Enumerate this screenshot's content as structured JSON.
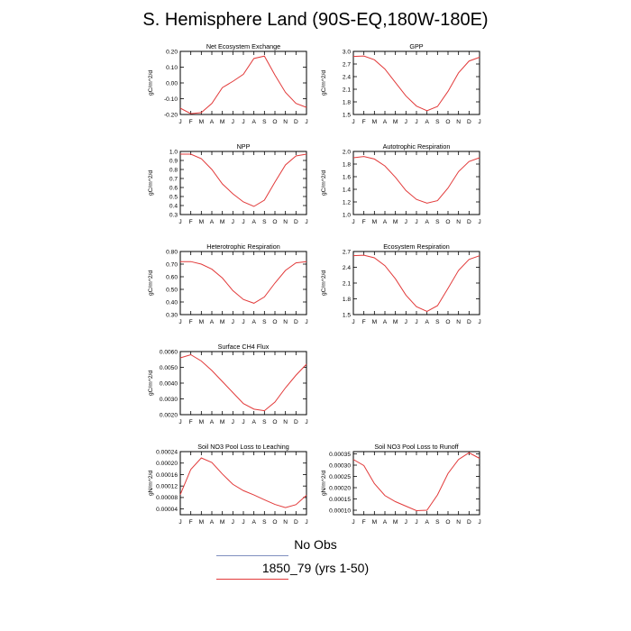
{
  "title": "S. Hemisphere Land (90S-EQ,180W-180E)",
  "legend": {
    "obs_label": "No Obs",
    "case_label": "1850_79 (yrs 1-50)",
    "obs_color": "#7f8fbf",
    "case_color": "#e23a3a"
  },
  "chart_data": [
    {
      "type": "line",
      "title": "Net Ecosystem Exchange",
      "ylabel": "gC/m^2/d",
      "categories": [
        "J",
        "F",
        "M",
        "A",
        "M",
        "J",
        "J",
        "A",
        "S",
        "O",
        "N",
        "D",
        "J"
      ],
      "ylim": [
        -0.2,
        0.2
      ],
      "yticks": [
        -0.2,
        -0.1,
        0.0,
        0.1,
        0.2
      ],
      "ytick_labels": [
        "-0.20",
        "-0.10",
        "0.00",
        "0.10",
        "0.20"
      ],
      "series": [
        {
          "color": "#e23a3a",
          "values": [
            -0.16,
            -0.195,
            -0.188,
            -0.13,
            -0.03,
            0.01,
            0.055,
            0.155,
            0.17,
            0.05,
            -0.06,
            -0.13,
            -0.155
          ]
        }
      ]
    },
    {
      "type": "line",
      "title": "GPP",
      "ylabel": "gC/m^2/d",
      "categories": [
        "J",
        "F",
        "M",
        "A",
        "M",
        "J",
        "J",
        "A",
        "S",
        "O",
        "N",
        "D",
        "J"
      ],
      "ylim": [
        1.5,
        3.0
      ],
      "yticks": [
        1.5,
        1.8,
        2.1,
        2.4,
        2.7,
        3.0
      ],
      "ytick_labels": [
        "1.5",
        "1.8",
        "2.1",
        "2.4",
        "2.7",
        "3.0"
      ],
      "series": [
        {
          "color": "#e23a3a",
          "values": [
            2.88,
            2.89,
            2.8,
            2.58,
            2.26,
            1.94,
            1.7,
            1.59,
            1.69,
            2.05,
            2.49,
            2.77,
            2.86
          ]
        }
      ]
    },
    {
      "type": "line",
      "title": "NPP",
      "ylabel": "gC/m^2/d",
      "categories": [
        "J",
        "F",
        "M",
        "A",
        "M",
        "J",
        "J",
        "A",
        "S",
        "O",
        "N",
        "D",
        "J"
      ],
      "ylim": [
        0.3,
        1.0
      ],
      "yticks": [
        0.3,
        0.4,
        0.5,
        0.6,
        0.7,
        0.8,
        0.9,
        1.0
      ],
      "ytick_labels": [
        "0.3",
        "0.4",
        "0.5",
        "0.6",
        "0.7",
        "0.8",
        "0.9",
        "1.0"
      ],
      "series": [
        {
          "color": "#e23a3a",
          "values": [
            0.97,
            0.97,
            0.92,
            0.8,
            0.64,
            0.53,
            0.44,
            0.39,
            0.46,
            0.66,
            0.85,
            0.95,
            0.97
          ]
        }
      ]
    },
    {
      "type": "line",
      "title": "Autotrophic Respiration",
      "ylabel": "gC/m^2/d",
      "categories": [
        "J",
        "F",
        "M",
        "A",
        "M",
        "J",
        "J",
        "A",
        "S",
        "O",
        "N",
        "D",
        "J"
      ],
      "ylim": [
        1.0,
        2.0
      ],
      "yticks": [
        1.0,
        1.2,
        1.4,
        1.6,
        1.8,
        2.0
      ],
      "ytick_labels": [
        "1.0",
        "1.2",
        "1.4",
        "1.6",
        "1.8",
        "2.0"
      ],
      "series": [
        {
          "color": "#e23a3a",
          "values": [
            1.9,
            1.92,
            1.88,
            1.77,
            1.59,
            1.38,
            1.24,
            1.18,
            1.22,
            1.42,
            1.68,
            1.84,
            1.9
          ]
        }
      ]
    },
    {
      "type": "line",
      "title": "Heterotrophic Respiration",
      "ylabel": "gC/m^2/d",
      "categories": [
        "J",
        "F",
        "M",
        "A",
        "M",
        "J",
        "J",
        "A",
        "S",
        "O",
        "N",
        "D",
        "J"
      ],
      "ylim": [
        0.3,
        0.8
      ],
      "yticks": [
        0.3,
        0.4,
        0.5,
        0.6,
        0.7,
        0.8
      ],
      "ytick_labels": [
        "0.30",
        "0.40",
        "0.50",
        "0.60",
        "0.70",
        "0.80"
      ],
      "series": [
        {
          "color": "#e23a3a",
          "values": [
            0.72,
            0.72,
            0.7,
            0.66,
            0.59,
            0.49,
            0.42,
            0.39,
            0.44,
            0.55,
            0.65,
            0.71,
            0.72
          ]
        }
      ]
    },
    {
      "type": "line",
      "title": "Ecosystem Respiration",
      "ylabel": "gC/m^2/d",
      "categories": [
        "J",
        "F",
        "M",
        "A",
        "M",
        "J",
        "J",
        "A",
        "S",
        "O",
        "N",
        "D",
        "J"
      ],
      "ylim": [
        1.5,
        2.7
      ],
      "yticks": [
        1.5,
        1.8,
        2.1,
        2.4,
        2.7
      ],
      "ytick_labels": [
        "1.5",
        "1.8",
        "2.1",
        "2.4",
        "2.7"
      ],
      "series": [
        {
          "color": "#e23a3a",
          "values": [
            2.62,
            2.63,
            2.58,
            2.43,
            2.18,
            1.87,
            1.65,
            1.56,
            1.67,
            2.0,
            2.34,
            2.55,
            2.62
          ]
        }
      ]
    },
    {
      "type": "line",
      "title": "Surface CH4 Flux",
      "ylabel": "gC/m^2/d",
      "categories": [
        "J",
        "F",
        "M",
        "A",
        "M",
        "J",
        "J",
        "A",
        "S",
        "O",
        "N",
        "D",
        "J"
      ],
      "ylim": [
        0.002,
        0.006
      ],
      "yticks": [
        0.002,
        0.003,
        0.004,
        0.005,
        0.006
      ],
      "ytick_labels": [
        "0.0020",
        "0.0030",
        "0.0040",
        "0.0050",
        "0.0060"
      ],
      "series": [
        {
          "color": "#e23a3a",
          "values": [
            0.0056,
            0.0058,
            0.0054,
            0.0048,
            0.0041,
            0.0034,
            0.0027,
            0.00235,
            0.00225,
            0.0028,
            0.0037,
            0.0045,
            0.0052
          ]
        }
      ]
    },
    {
      "type": "line",
      "title": "Soil NO3 Pool Loss to Leaching",
      "ylabel": "gN/m^2/d",
      "categories": [
        "J",
        "F",
        "M",
        "A",
        "M",
        "J",
        "J",
        "A",
        "S",
        "O",
        "N",
        "D",
        "J"
      ],
      "ylim": [
        2e-05,
        0.00024
      ],
      "yticks": [
        4e-05,
        8e-05,
        0.00012,
        0.00016,
        0.0002,
        0.00024
      ],
      "ytick_labels": [
        "0.00004",
        "0.00008",
        "0.00012",
        "0.00016",
        "0.00020",
        "0.00024"
      ],
      "series": [
        {
          "color": "#e23a3a",
          "values": [
            9e-05,
            0.000178,
            0.000218,
            0.000202,
            0.000162,
            0.000126,
            0.000104,
            8.9e-05,
            7.2e-05,
            5.6e-05,
            4.5e-05,
            5.5e-05,
            8.8e-05
          ]
        }
      ]
    },
    {
      "type": "line",
      "title": "Soil NO3 Pool Loss to Runoff",
      "ylabel": "gN/m^2/d",
      "categories": [
        "J",
        "F",
        "M",
        "A",
        "M",
        "J",
        "J",
        "A",
        "S",
        "O",
        "N",
        "D",
        "J"
      ],
      "ylim": [
        8e-05,
        0.00036
      ],
      "yticks": [
        0.0001,
        0.00015,
        0.0002,
        0.00025,
        0.0003,
        0.00035
      ],
      "ytick_labels": [
        "0.00010",
        "0.00015",
        "0.00020",
        "0.00025",
        "0.00030",
        "0.00035"
      ],
      "series": [
        {
          "color": "#e23a3a",
          "values": [
            0.000325,
            0.000298,
            0.000218,
            0.000165,
            0.000138,
            0.000118,
            9.8e-05,
            0.0001,
            0.000168,
            0.000263,
            0.000325,
            0.000355,
            0.00033
          ]
        }
      ]
    }
  ]
}
